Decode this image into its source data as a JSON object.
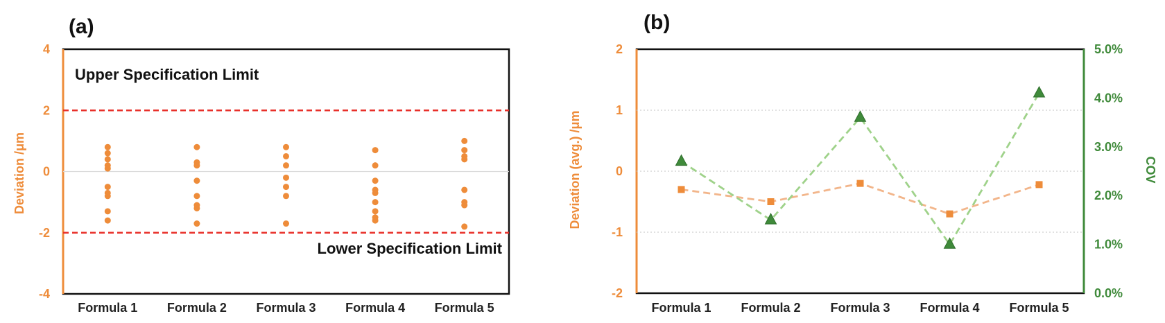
{
  "colors": {
    "orange": "#ee8c3a",
    "green": "#3f8a3a",
    "green_line": "#9fd28a",
    "orange_line": "#f2b58a",
    "limit_red": "#e8302a",
    "axis_orange": "#ee8c3a",
    "axis_green": "#3f8a3a"
  },
  "chart_data": [
    {
      "panel_label": "(a)",
      "type": "scatter",
      "categories": [
        "Formula 1",
        "Formula 2",
        "Formula 3",
        "Formula 4",
        "Formula 5"
      ],
      "points": [
        [
          0.8,
          0.6,
          0.4,
          0.2,
          0.1,
          -0.5,
          -0.7,
          -0.8,
          -1.3,
          -1.6
        ],
        [
          0.8,
          0.3,
          0.2,
          -0.3,
          -0.8,
          -1.1,
          -1.2,
          -1.7
        ],
        [
          0.8,
          0.5,
          0.2,
          -0.2,
          -0.5,
          -0.8,
          -1.7
        ],
        [
          0.7,
          0.2,
          -0.3,
          -0.6,
          -0.7,
          -1.0,
          -1.3,
          -1.5,
          -1.6
        ],
        [
          1.0,
          0.7,
          0.5,
          0.4,
          -0.6,
          -1.0,
          -1.1,
          -1.8
        ]
      ],
      "ylabel": "Deviation /μm",
      "ylim": [
        -4,
        4
      ],
      "yticks": [
        -4,
        -2,
        0,
        2,
        4
      ],
      "limits": [
        {
          "value": 2,
          "label": "Upper Specification Limit"
        },
        {
          "value": -2,
          "label": "Lower Specification Limit"
        }
      ],
      "grid": "horizontal at 0"
    },
    {
      "panel_label": "(b)",
      "type": "line",
      "categories": [
        "Formula 1",
        "Formula 2",
        "Formula 3",
        "Formula 4",
        "Formula 5"
      ],
      "series": [
        {
          "axis": "left",
          "marker": "square",
          "values": [
            -0.3,
            -0.5,
            -0.2,
            -0.7,
            -0.22
          ]
        },
        {
          "axis": "right",
          "marker": "triangle",
          "values": [
            2.7,
            1.5,
            3.6,
            1.0,
            4.1
          ]
        }
      ],
      "ylabel": "Deviation (avg.) /μm",
      "ylim": [
        -2,
        2
      ],
      "yticks": [
        -2,
        -1,
        0,
        1,
        2
      ],
      "y2label": "COV",
      "y2lim": [
        0.0,
        5.0
      ],
      "y2ticks": [
        "0.0%",
        "1.0%",
        "2.0%",
        "3.0%",
        "4.0%",
        "5.0%"
      ],
      "grid": "horizontal dotted"
    }
  ]
}
